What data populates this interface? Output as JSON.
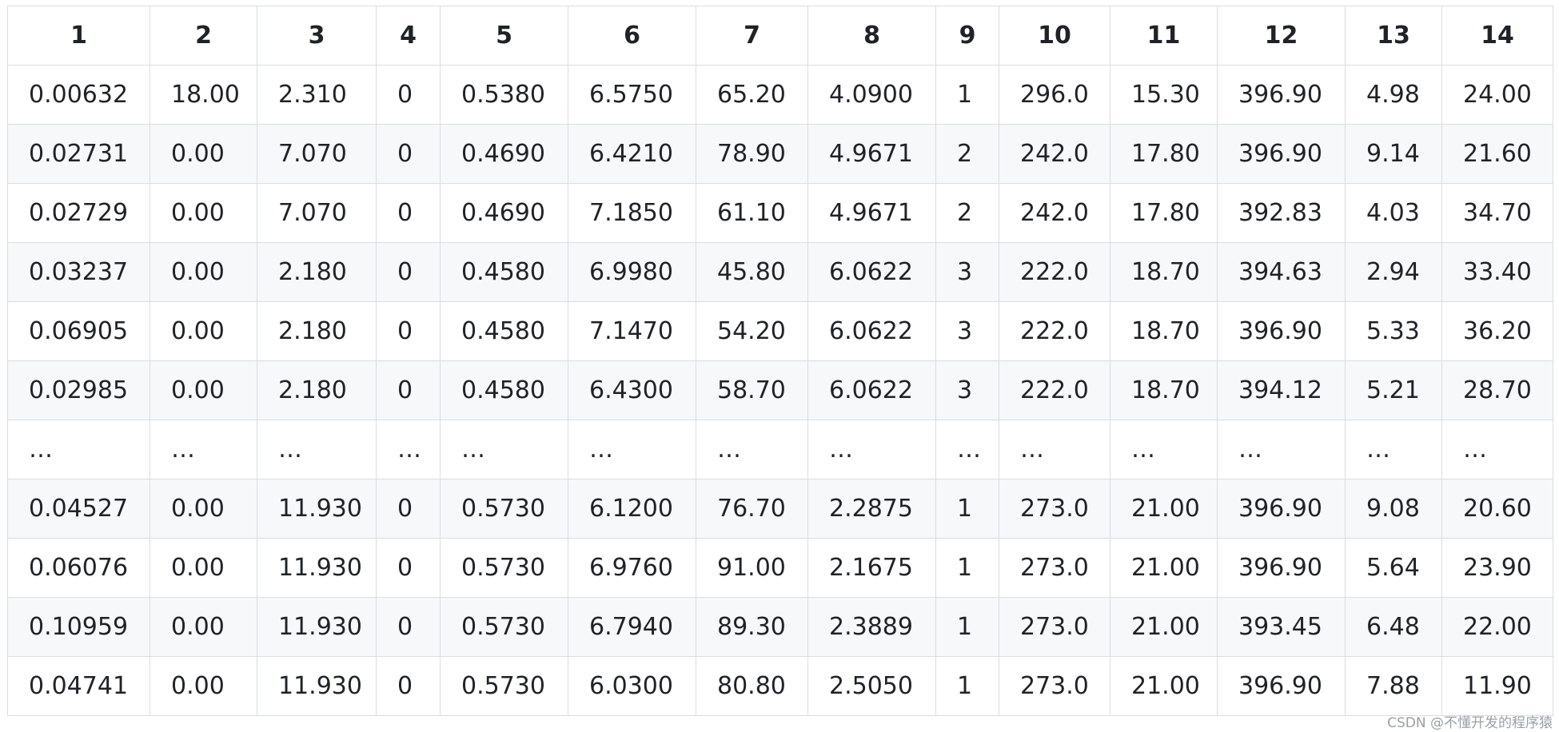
{
  "table": {
    "headers": [
      "1",
      "2",
      "3",
      "4",
      "5",
      "6",
      "7",
      "8",
      "9",
      "10",
      "11",
      "12",
      "13",
      "14"
    ],
    "rows": [
      [
        "0.00632",
        "18.00",
        "2.310",
        "0",
        "0.5380",
        "6.5750",
        "65.20",
        "4.0900",
        "1",
        "296.0",
        "15.30",
        "396.90",
        "4.98",
        "24.00"
      ],
      [
        "0.02731",
        "0.00",
        "7.070",
        "0",
        "0.4690",
        "6.4210",
        "78.90",
        "4.9671",
        "2",
        "242.0",
        "17.80",
        "396.90",
        "9.14",
        "21.60"
      ],
      [
        "0.02729",
        "0.00",
        "7.070",
        "0",
        "0.4690",
        "7.1850",
        "61.10",
        "4.9671",
        "2",
        "242.0",
        "17.80",
        "392.83",
        "4.03",
        "34.70"
      ],
      [
        "0.03237",
        "0.00",
        "2.180",
        "0",
        "0.4580",
        "6.9980",
        "45.80",
        "6.0622",
        "3",
        "222.0",
        "18.70",
        "394.63",
        "2.94",
        "33.40"
      ],
      [
        "0.06905",
        "0.00",
        "2.180",
        "0",
        "0.4580",
        "7.1470",
        "54.20",
        "6.0622",
        "3",
        "222.0",
        "18.70",
        "396.90",
        "5.33",
        "36.20"
      ],
      [
        "0.02985",
        "0.00",
        "2.180",
        "0",
        "0.4580",
        "6.4300",
        "58.70",
        "6.0622",
        "3",
        "222.0",
        "18.70",
        "394.12",
        "5.21",
        "28.70"
      ],
      [
        "…",
        "…",
        "…",
        "…",
        "…",
        "…",
        "…",
        "…",
        "…",
        "…",
        "…",
        "…",
        "…",
        "…"
      ],
      [
        "0.04527",
        "0.00",
        "11.930",
        "0",
        "0.5730",
        "6.1200",
        "76.70",
        "2.2875",
        "1",
        "273.0",
        "21.00",
        "396.90",
        "9.08",
        "20.60"
      ],
      [
        "0.06076",
        "0.00",
        "11.930",
        "0",
        "0.5730",
        "6.9760",
        "91.00",
        "2.1675",
        "1",
        "273.0",
        "21.00",
        "396.90",
        "5.64",
        "23.90"
      ],
      [
        "0.10959",
        "0.00",
        "11.930",
        "0",
        "0.5730",
        "6.7940",
        "89.30",
        "2.3889",
        "1",
        "273.0",
        "21.00",
        "393.45",
        "6.48",
        "22.00"
      ],
      [
        "0.04741",
        "0.00",
        "11.930",
        "0",
        "0.5730",
        "6.0300",
        "80.80",
        "2.5050",
        "1",
        "273.0",
        "21.00",
        "396.90",
        "7.88",
        "11.90"
      ]
    ]
  },
  "watermark": "CSDN @不懂开发的程序猿"
}
